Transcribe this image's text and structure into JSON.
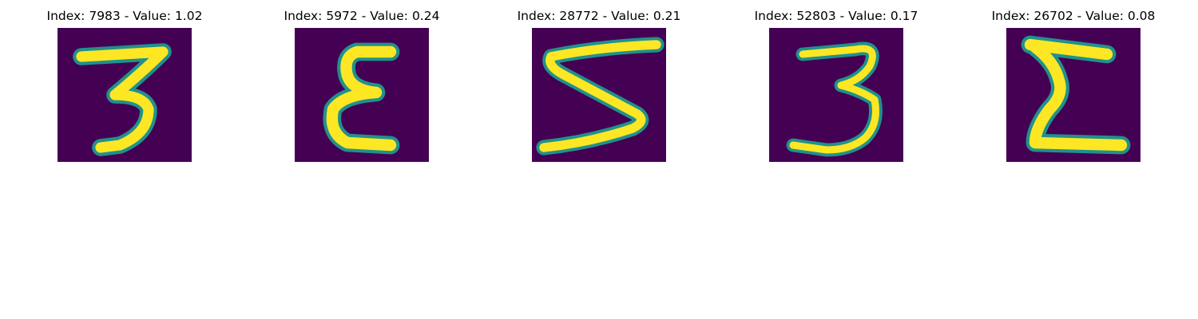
{
  "colors": {
    "background": "#440154",
    "stroke": "#fde725",
    "edge": "#21918c"
  },
  "panels": [
    {
      "title": "Index: 7983 - Value: 1.02"
    },
    {
      "title": "Index: 5972 - Value: 0.24"
    },
    {
      "title": "Index: 28772 - Value: 0.21"
    },
    {
      "title": "Index: 52803 - Value: 0.17"
    },
    {
      "title": "Index: 26702 - Value: 0.08"
    }
  ]
}
